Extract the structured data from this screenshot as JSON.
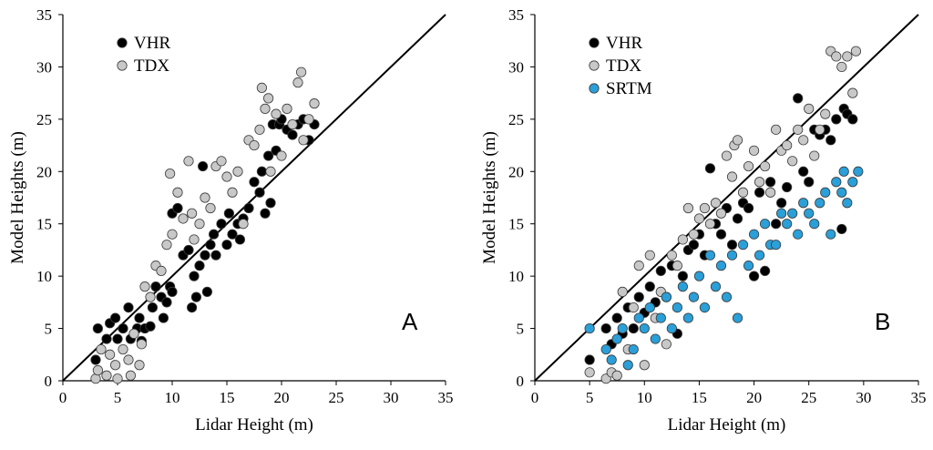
{
  "colors": {
    "VHR": "#000000",
    "TDX": "#c8c8c8",
    "SRTM": "#2a9fd8",
    "marker_edge": "#3a3a3a"
  },
  "chart_data": [
    {
      "type": "scatter",
      "panel_label": "A",
      "xlabel": "Lidar Height (m)",
      "ylabel": "Model Heights (m)",
      "xlim": [
        0,
        35
      ],
      "ylim": [
        0,
        35
      ],
      "xticks": [
        "0",
        "5",
        "10",
        "15",
        "20",
        "25",
        "30",
        "35"
      ],
      "yticks": [
        "0",
        "5",
        "10",
        "15",
        "20",
        "25",
        "30",
        "35"
      ],
      "reference_line": "1:1",
      "legend_position": "top-left",
      "series": [
        {
          "name": "VHR",
          "color": "#000000",
          "points": [
            [
              3,
              2
            ],
            [
              3.2,
              5
            ],
            [
              4,
              4
            ],
            [
              4.3,
              5.5
            ],
            [
              4.8,
              6
            ],
            [
              5,
              4
            ],
            [
              5.5,
              5
            ],
            [
              6,
              7
            ],
            [
              6.2,
              4
            ],
            [
              6.8,
              5
            ],
            [
              7,
              6
            ],
            [
              7.2,
              3.8
            ],
            [
              7.5,
              5
            ],
            [
              8,
              5.2
            ],
            [
              8.2,
              7
            ],
            [
              8.5,
              9
            ],
            [
              9,
              8
            ],
            [
              9.2,
              6
            ],
            [
              9.5,
              7.5
            ],
            [
              9.8,
              9
            ],
            [
              10,
              8.5
            ],
            [
              10,
              16
            ],
            [
              10.5,
              16.5
            ],
            [
              11,
              12
            ],
            [
              11.5,
              12.5
            ],
            [
              11.8,
              7
            ],
            [
              12,
              10
            ],
            [
              12.2,
              8
            ],
            [
              12.5,
              11
            ],
            [
              12.8,
              20.5
            ],
            [
              13,
              12
            ],
            [
              13.2,
              8.5
            ],
            [
              13.5,
              13
            ],
            [
              13.8,
              14
            ],
            [
              14,
              12
            ],
            [
              14.5,
              15
            ],
            [
              15,
              13
            ],
            [
              15.2,
              16
            ],
            [
              15.5,
              14
            ],
            [
              16,
              15
            ],
            [
              16.2,
              13.5
            ],
            [
              16.5,
              15.5
            ],
            [
              17,
              16.5
            ],
            [
              17.5,
              19
            ],
            [
              18,
              18
            ],
            [
              18.2,
              20
            ],
            [
              18.5,
              16
            ],
            [
              18.8,
              21.5
            ],
            [
              19,
              17
            ],
            [
              19.2,
              24.5
            ],
            [
              19.5,
              22
            ],
            [
              19.8,
              24.5
            ],
            [
              20,
              25
            ],
            [
              20.5,
              24
            ],
            [
              21,
              23.5
            ],
            [
              21.5,
              24.5
            ],
            [
              22,
              25
            ],
            [
              22.5,
              23
            ],
            [
              23,
              24.5
            ]
          ]
        },
        {
          "name": "TDX",
          "color": "#c8c8c8",
          "points": [
            [
              3,
              0.2
            ],
            [
              3.2,
              1
            ],
            [
              3.5,
              3
            ],
            [
              4,
              0.5
            ],
            [
              4.3,
              2.5
            ],
            [
              4.8,
              1.5
            ],
            [
              5,
              0.2
            ],
            [
              5.5,
              3
            ],
            [
              6,
              2
            ],
            [
              6.2,
              0.5
            ],
            [
              6.5,
              4.5
            ],
            [
              7,
              1.5
            ],
            [
              7.2,
              3.5
            ],
            [
              7.5,
              9
            ],
            [
              8,
              8
            ],
            [
              8.5,
              11
            ],
            [
              9,
              10.5
            ],
            [
              9.5,
              13
            ],
            [
              9.8,
              19.8
            ],
            [
              10,
              14
            ],
            [
              10.5,
              18
            ],
            [
              11,
              15.5
            ],
            [
              11.5,
              21
            ],
            [
              11.8,
              16
            ],
            [
              12,
              13.5
            ],
            [
              12.5,
              15
            ],
            [
              13,
              17.5
            ],
            [
              13.5,
              16.5
            ],
            [
              14,
              20.5
            ],
            [
              14.5,
              21
            ],
            [
              15,
              19.5
            ],
            [
              15.5,
              18
            ],
            [
              16,
              20
            ],
            [
              16.5,
              15
            ],
            [
              17,
              23
            ],
            [
              17.5,
              22.5
            ],
            [
              18,
              24
            ],
            [
              18.2,
              28
            ],
            [
              18.5,
              26
            ],
            [
              18.8,
              27
            ],
            [
              19,
              20
            ],
            [
              19.5,
              25.5
            ],
            [
              20,
              21.5
            ],
            [
              20.5,
              26
            ],
            [
              21,
              24.5
            ],
            [
              21.5,
              28.5
            ],
            [
              21.8,
              29.5
            ],
            [
              22,
              23
            ],
            [
              22.5,
              25
            ],
            [
              23,
              26.5
            ]
          ]
        }
      ]
    },
    {
      "type": "scatter",
      "panel_label": "B",
      "xlabel": "Lidar Height (m)",
      "ylabel": "Model Heights (m)",
      "xlim": [
        0,
        35
      ],
      "ylim": [
        0,
        35
      ],
      "xticks": [
        "0",
        "5",
        "10",
        "15",
        "20",
        "25",
        "30",
        "35"
      ],
      "yticks": [
        "0",
        "5",
        "10",
        "15",
        "20",
        "25",
        "30",
        "35"
      ],
      "reference_line": "1:1",
      "legend_position": "top-left",
      "series": [
        {
          "name": "VHR",
          "color": "#000000",
          "points": [
            [
              5,
              2
            ],
            [
              6.5,
              5
            ],
            [
              7,
              3.5
            ],
            [
              7.5,
              6
            ],
            [
              8,
              4.5
            ],
            [
              8.5,
              7
            ],
            [
              9,
              5
            ],
            [
              9.5,
              8
            ],
            [
              10,
              6.5
            ],
            [
              10.5,
              9
            ],
            [
              11,
              7.5
            ],
            [
              11.5,
              10.5
            ],
            [
              12,
              8
            ],
            [
              12.5,
              11
            ],
            [
              13,
              4.5
            ],
            [
              13.5,
              10
            ],
            [
              14,
              12.5
            ],
            [
              14.5,
              13
            ],
            [
              15,
              14
            ],
            [
              15.5,
              12
            ],
            [
              16,
              20.3
            ],
            [
              16.5,
              15
            ],
            [
              17,
              14
            ],
            [
              17.5,
              16.5
            ],
            [
              18,
              13
            ],
            [
              18.5,
              15.5
            ],
            [
              19,
              17
            ],
            [
              19.5,
              16.5
            ],
            [
              20,
              10
            ],
            [
              20.5,
              18
            ],
            [
              21,
              10.5
            ],
            [
              21.5,
              19
            ],
            [
              22,
              15
            ],
            [
              22.5,
              17
            ],
            [
              23,
              18.5
            ],
            [
              24,
              27
            ],
            [
              24.5,
              20
            ],
            [
              25,
              19
            ],
            [
              25.5,
              24
            ],
            [
              26,
              23.5
            ],
            [
              26.5,
              24
            ],
            [
              27,
              23
            ],
            [
              27.5,
              25
            ],
            [
              28,
              14.5
            ],
            [
              28.2,
              26
            ],
            [
              28.5,
              25.5
            ],
            [
              29,
              25
            ]
          ]
        },
        {
          "name": "TDX",
          "color": "#c8c8c8",
          "points": [
            [
              5,
              0.8
            ],
            [
              6.5,
              0.2
            ],
            [
              7,
              0.8
            ],
            [
              7.5,
              0.5
            ],
            [
              8,
              8.5
            ],
            [
              8.5,
              3
            ],
            [
              9,
              7
            ],
            [
              9.5,
              11
            ],
            [
              10,
              1.5
            ],
            [
              10.5,
              12
            ],
            [
              11,
              6
            ],
            [
              11.5,
              8.5
            ],
            [
              12,
              3.5
            ],
            [
              12.5,
              12
            ],
            [
              13,
              11
            ],
            [
              13.5,
              13.5
            ],
            [
              14,
              16.5
            ],
            [
              14.5,
              14
            ],
            [
              15,
              15.5
            ],
            [
              15.5,
              16.5
            ],
            [
              16,
              15
            ],
            [
              16.5,
              17
            ],
            [
              17,
              16
            ],
            [
              17.5,
              21.5
            ],
            [
              18,
              19.5
            ],
            [
              18.2,
              22.5
            ],
            [
              18.5,
              23
            ],
            [
              19,
              18
            ],
            [
              19.5,
              20.5
            ],
            [
              20,
              22
            ],
            [
              20.5,
              19
            ],
            [
              21,
              20.5
            ],
            [
              21.5,
              18
            ],
            [
              22,
              24
            ],
            [
              22.5,
              22
            ],
            [
              23,
              22.5
            ],
            [
              23.5,
              21
            ],
            [
              24,
              24
            ],
            [
              24.5,
              23
            ],
            [
              25,
              26
            ],
            [
              25.5,
              21.5
            ],
            [
              26,
              24
            ],
            [
              26.5,
              25.5
            ],
            [
              27,
              31.5
            ],
            [
              27.5,
              31
            ],
            [
              28,
              30
            ],
            [
              28.5,
              31
            ],
            [
              29,
              27.5
            ],
            [
              29.3,
              31.5
            ]
          ]
        },
        {
          "name": "SRTM",
          "color": "#2a9fd8",
          "points": [
            [
              5,
              5
            ],
            [
              6.5,
              3
            ],
            [
              7,
              2
            ],
            [
              7.5,
              4
            ],
            [
              8,
              5
            ],
            [
              8.5,
              1.5
            ],
            [
              9,
              3
            ],
            [
              9.5,
              6
            ],
            [
              10,
              5
            ],
            [
              10.5,
              7
            ],
            [
              11,
              4
            ],
            [
              11.5,
              6
            ],
            [
              12,
              8
            ],
            [
              12.5,
              5
            ],
            [
              13,
              7
            ],
            [
              13.5,
              9
            ],
            [
              14,
              6
            ],
            [
              14.5,
              8
            ],
            [
              15,
              10
            ],
            [
              15.5,
              7
            ],
            [
              16,
              12
            ],
            [
              16.5,
              9
            ],
            [
              17,
              11
            ],
            [
              17.5,
              8
            ],
            [
              18,
              12
            ],
            [
              18.5,
              6
            ],
            [
              19,
              13
            ],
            [
              19.5,
              11
            ],
            [
              20,
              14
            ],
            [
              20.5,
              12
            ],
            [
              21,
              15
            ],
            [
              21.5,
              13
            ],
            [
              22,
              13
            ],
            [
              22.5,
              16
            ],
            [
              23,
              15
            ],
            [
              23.5,
              16
            ],
            [
              24,
              14
            ],
            [
              24.5,
              17
            ],
            [
              25,
              16
            ],
            [
              25.5,
              15
            ],
            [
              26,
              17
            ],
            [
              26.5,
              18
            ],
            [
              27,
              14
            ],
            [
              27.5,
              19
            ],
            [
              28,
              18
            ],
            [
              28.2,
              20
            ],
            [
              28.5,
              17
            ],
            [
              29,
              19
            ],
            [
              29.5,
              20
            ]
          ]
        }
      ]
    }
  ]
}
